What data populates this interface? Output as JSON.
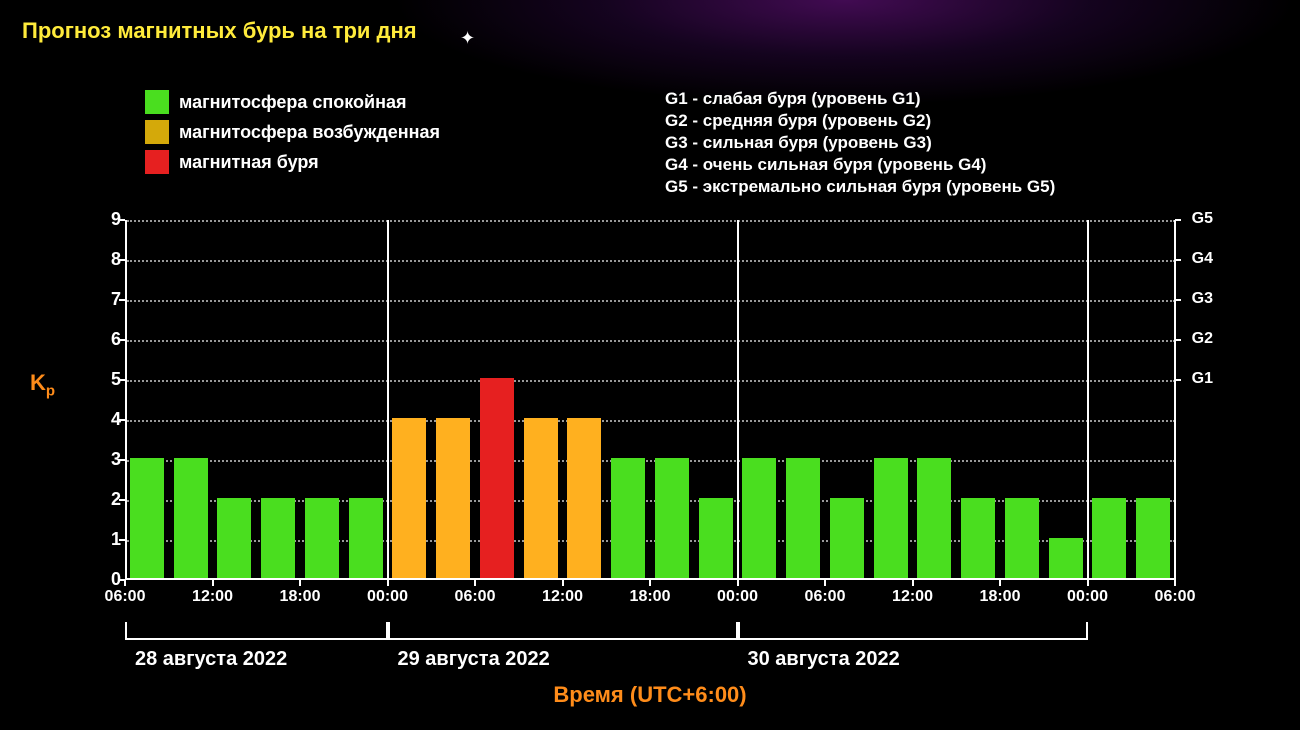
{
  "title": {
    "text": "Прогноз магнитных бурь на три дня",
    "color": "#ffeb3b",
    "fontsize": 22
  },
  "legend": {
    "items": [
      {
        "label": "магнитосфера спокойная",
        "color": "#4ade1f"
      },
      {
        "label": "магнитосфера возбужденная",
        "color": "#d4a90a"
      },
      {
        "label": "магнитная буря",
        "color": "#e62020"
      }
    ],
    "text_color": "#ffffff"
  },
  "g_levels": {
    "lines": [
      "G1 - слабая буря (уровень G1)",
      "G2 - средняя буря (уровень G2)",
      "G3 - сильная буря (уровень G3)",
      "G4 - очень сильная буря (уровень G4)",
      "G5 - экстремально сильная буря (уровень G5)"
    ],
    "color": "#ffffff"
  },
  "chart": {
    "type": "bar",
    "y_axis": {
      "label": "Kр",
      "label_color": "#ff8c1a",
      "ticks": [
        0,
        1,
        2,
        3,
        4,
        5,
        6,
        7,
        8,
        9
      ],
      "tick_color": "#ffffff",
      "grid_dotted_color": "#ffffff"
    },
    "right_axis": {
      "levels": [
        {
          "label": "G1",
          "at": 5
        },
        {
          "label": "G2",
          "at": 6
        },
        {
          "label": "G3",
          "at": 7
        },
        {
          "label": "G4",
          "at": 8
        },
        {
          "label": "G5",
          "at": 9
        }
      ],
      "color": "#ffffff"
    },
    "x_ticks": [
      "06:00",
      "12:00",
      "18:00",
      "00:00",
      "06:00",
      "12:00",
      "18:00",
      "00:00",
      "06:00",
      "12:00",
      "18:00",
      "00:00",
      "06:00"
    ],
    "day_sections": [
      {
        "label": "28 августа 2022",
        "start_idx": 0,
        "end_idx": 6
      },
      {
        "label": "29 августа 2022",
        "start_idx": 6,
        "end_idx": 14
      },
      {
        "label": "30 августа 2022",
        "start_idx": 14,
        "end_idx": 22
      }
    ],
    "verticals_at": [
      6,
      14,
      22,
      24
    ],
    "bars": [
      {
        "v": 3,
        "c": "#4ade1f"
      },
      {
        "v": 3,
        "c": "#4ade1f"
      },
      {
        "v": 2,
        "c": "#4ade1f"
      },
      {
        "v": 2,
        "c": "#4ade1f"
      },
      {
        "v": 2,
        "c": "#4ade1f"
      },
      {
        "v": 2,
        "c": "#4ade1f"
      },
      {
        "v": 4,
        "c": "#ffb01f"
      },
      {
        "v": 4,
        "c": "#ffb01f"
      },
      {
        "v": 5,
        "c": "#e62020"
      },
      {
        "v": 4,
        "c": "#ffb01f"
      },
      {
        "v": 4,
        "c": "#ffb01f"
      },
      {
        "v": 3,
        "c": "#4ade1f"
      },
      {
        "v": 3,
        "c": "#4ade1f"
      },
      {
        "v": 2,
        "c": "#4ade1f"
      },
      {
        "v": 3,
        "c": "#4ade1f"
      },
      {
        "v": 3,
        "c": "#4ade1f"
      },
      {
        "v": 2,
        "c": "#4ade1f"
      },
      {
        "v": 3,
        "c": "#4ade1f"
      },
      {
        "v": 3,
        "c": "#4ade1f"
      },
      {
        "v": 2,
        "c": "#4ade1f"
      },
      {
        "v": 2,
        "c": "#4ade1f"
      },
      {
        "v": 1,
        "c": "#4ade1f"
      },
      {
        "v": 2,
        "c": "#4ade1f"
      },
      {
        "v": 2,
        "c": "#4ade1f"
      }
    ],
    "bar_width_ratio": 0.78,
    "background_color": "#000000",
    "axis_color": "#ffffff"
  },
  "time_footer": {
    "text": "Время (UTC+6:00)",
    "color": "#ff8c1a"
  }
}
